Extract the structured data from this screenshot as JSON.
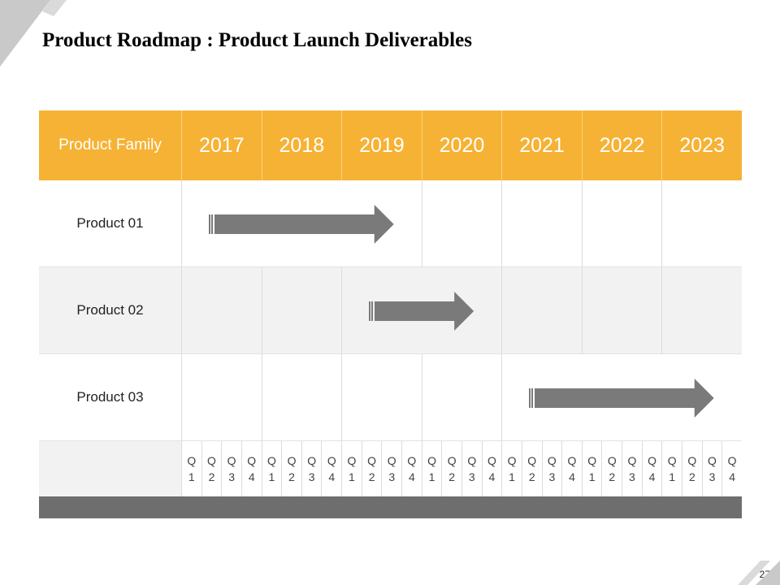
{
  "slide": {
    "title": "Product Roadmap : Product Launch Deliverables",
    "page_number": "27"
  },
  "table": {
    "header_label": "Product Family",
    "years": [
      "2017",
      "2018",
      "2019",
      "2020",
      "2021",
      "2022",
      "2023"
    ],
    "products": [
      {
        "name": "Product 01",
        "start_year": "2017",
        "end_year": "2019"
      },
      {
        "name": "Product 02",
        "start_year": "2019",
        "end_year": "2020"
      },
      {
        "name": "Product 03",
        "start_year": "2021",
        "end_year": "2023"
      }
    ],
    "quarters": [
      {
        "q": "Q",
        "n": "1"
      },
      {
        "q": "Q",
        "n": "2"
      },
      {
        "q": "Q",
        "n": "3"
      },
      {
        "q": "Q",
        "n": "4"
      },
      {
        "q": "Q",
        "n": "1"
      },
      {
        "q": "Q",
        "n": "2"
      },
      {
        "q": "Q",
        "n": "3"
      },
      {
        "q": "Q",
        "n": "4"
      },
      {
        "q": "Q",
        "n": "1"
      },
      {
        "q": "Q",
        "n": "2"
      },
      {
        "q": "Q",
        "n": "3"
      },
      {
        "q": "Q",
        "n": "4"
      },
      {
        "q": "Q",
        "n": "1"
      },
      {
        "q": "Q",
        "n": "2"
      },
      {
        "q": "Q",
        "n": "3"
      },
      {
        "q": "Q",
        "n": "4"
      },
      {
        "q": "Q",
        "n": "1"
      },
      {
        "q": "Q",
        "n": "2"
      },
      {
        "q": "Q",
        "n": "3"
      },
      {
        "q": "Q",
        "n": "4"
      },
      {
        "q": "Q",
        "n": "1"
      },
      {
        "q": "Q",
        "n": "2"
      },
      {
        "q": "Q",
        "n": "3"
      },
      {
        "q": "Q",
        "n": "4"
      },
      {
        "q": "Q",
        "n": "1"
      },
      {
        "q": "Q",
        "n": "2"
      },
      {
        "q": "Q",
        "n": "3"
      },
      {
        "q": "Q",
        "n": "4"
      }
    ]
  },
  "colors": {
    "header": "#f6b234",
    "arrow": "#7a7a7a",
    "band_gray": "#f2f2f2",
    "footer_bar": "#6e6e6e"
  }
}
